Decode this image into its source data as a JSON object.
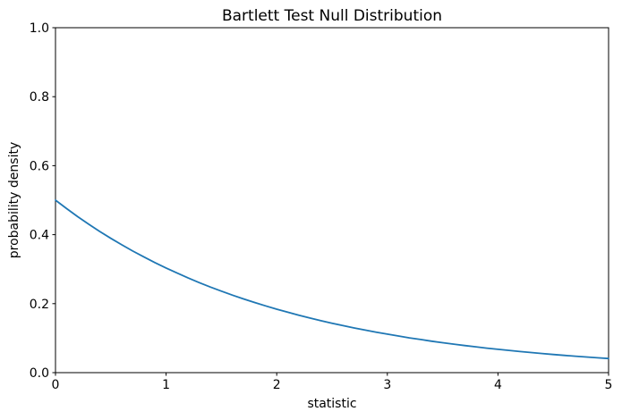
{
  "chart_data": {
    "type": "line",
    "title": "Bartlett Test Null Distribution",
    "xlabel": "statistic",
    "ylabel": "probability density",
    "xlim": [
      0,
      5
    ],
    "ylim": [
      0.0,
      1.0
    ],
    "grid": false,
    "line_color": "#1f77b4",
    "axis_color": "#000000",
    "x_ticks": [
      {
        "value": 0,
        "label": "0"
      },
      {
        "value": 1,
        "label": "1"
      },
      {
        "value": 2,
        "label": "2"
      },
      {
        "value": 3,
        "label": "3"
      },
      {
        "value": 4,
        "label": "4"
      },
      {
        "value": 5,
        "label": "5"
      }
    ],
    "y_ticks": [
      {
        "value": 0.0,
        "label": "0.0"
      },
      {
        "value": 0.2,
        "label": "0.2"
      },
      {
        "value": 0.4,
        "label": "0.4"
      },
      {
        "value": 0.6,
        "label": "0.6"
      },
      {
        "value": 0.8,
        "label": "0.8"
      },
      {
        "value": 1.0,
        "label": "1.0"
      }
    ],
    "series": [
      {
        "x": [
          0,
          0.1,
          0.2,
          0.3,
          0.4,
          0.5,
          0.6,
          0.7,
          0.8,
          0.9,
          1.0,
          1.1,
          1.2,
          1.3,
          1.4,
          1.5,
          1.6,
          1.7,
          1.8,
          1.9,
          2.0,
          2.1,
          2.2,
          2.3,
          2.4,
          2.5,
          2.6,
          2.7,
          2.8,
          2.9,
          3.0,
          3.1,
          3.2,
          3.3,
          3.4,
          3.5,
          3.6,
          3.7,
          3.8,
          3.9,
          4.0,
          4.1,
          4.2,
          4.3,
          4.4,
          4.5,
          4.6,
          4.7,
          4.8,
          4.9,
          5.0
        ],
        "y": [
          0.5,
          0.4756,
          0.4524,
          0.4304,
          0.4094,
          0.3894,
          0.3704,
          0.3523,
          0.3352,
          0.3188,
          0.3033,
          0.2885,
          0.2744,
          0.261,
          0.2483,
          0.2362,
          0.2247,
          0.2137,
          0.2033,
          0.1934,
          0.1839,
          0.175,
          0.1664,
          0.1583,
          0.1506,
          0.1433,
          0.1363,
          0.1296,
          0.1233,
          0.1173,
          0.1116,
          0.1061,
          0.1009,
          0.096,
          0.0913,
          0.0869,
          0.0826,
          0.0786,
          0.0748,
          0.0711,
          0.0677,
          0.0644,
          0.0612,
          0.0582,
          0.0554,
          0.0527,
          0.0501,
          0.0477,
          0.0454,
          0.0431,
          0.041
        ]
      }
    ]
  }
}
